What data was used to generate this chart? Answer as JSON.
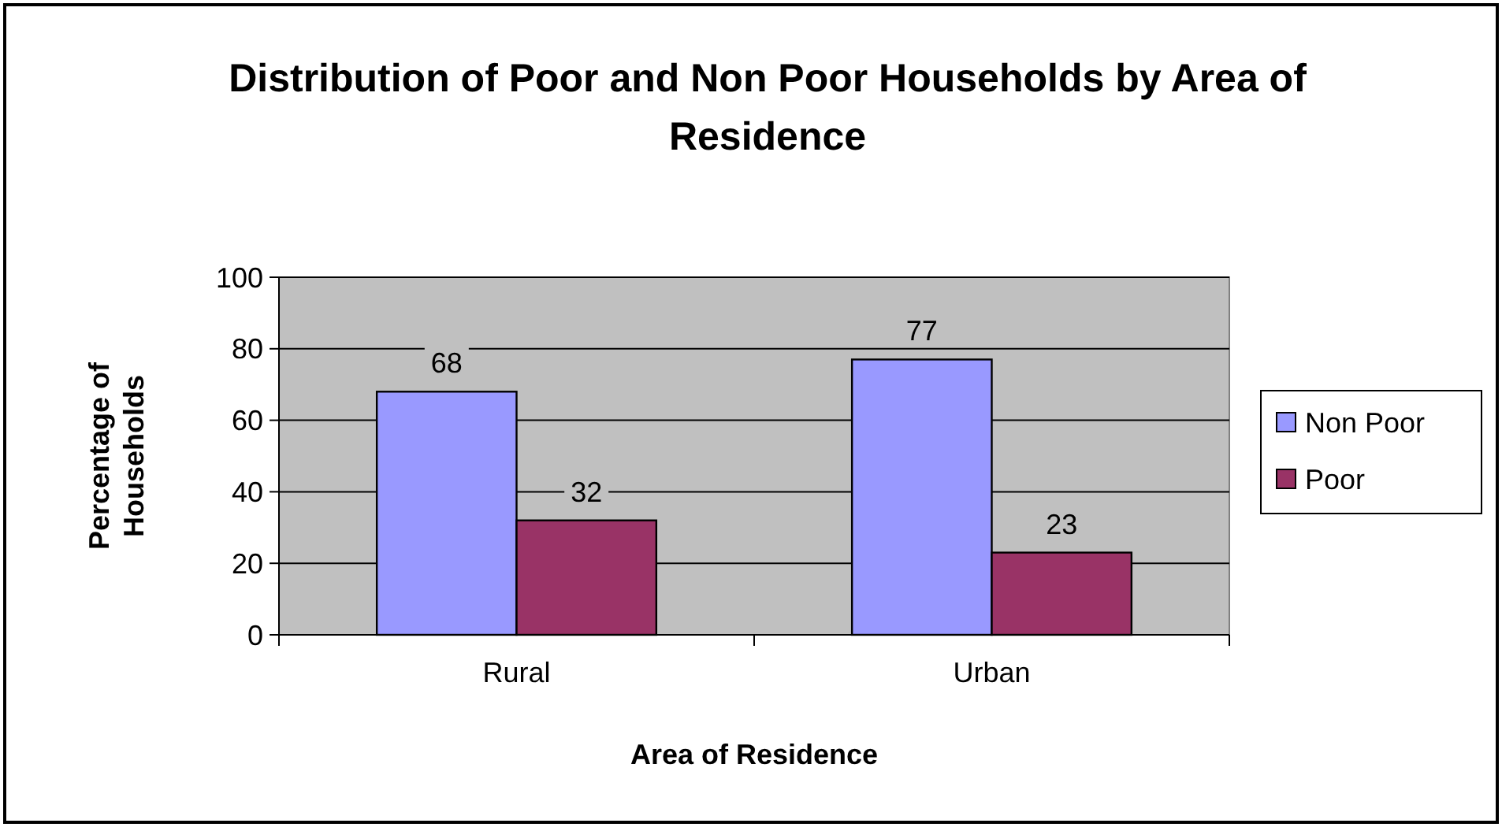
{
  "chart_data": {
    "type": "bar",
    "title": "Distribution of Poor and Non Poor Households by Area of Residence",
    "xlabel": "Area of Residence",
    "ylabel": "Percentage of Households",
    "categories": [
      "Rural",
      "Urban"
    ],
    "series": [
      {
        "name": "Non Poor",
        "color": "#9999ff",
        "values": [
          68,
          77
        ]
      },
      {
        "name": "Poor",
        "color": "#993366",
        "values": [
          32,
          23
        ]
      }
    ],
    "ylim": [
      0,
      100
    ],
    "yticks": [
      0,
      20,
      40,
      60,
      80,
      100
    ],
    "grid": "y",
    "legend": "right",
    "data_labels": true
  }
}
